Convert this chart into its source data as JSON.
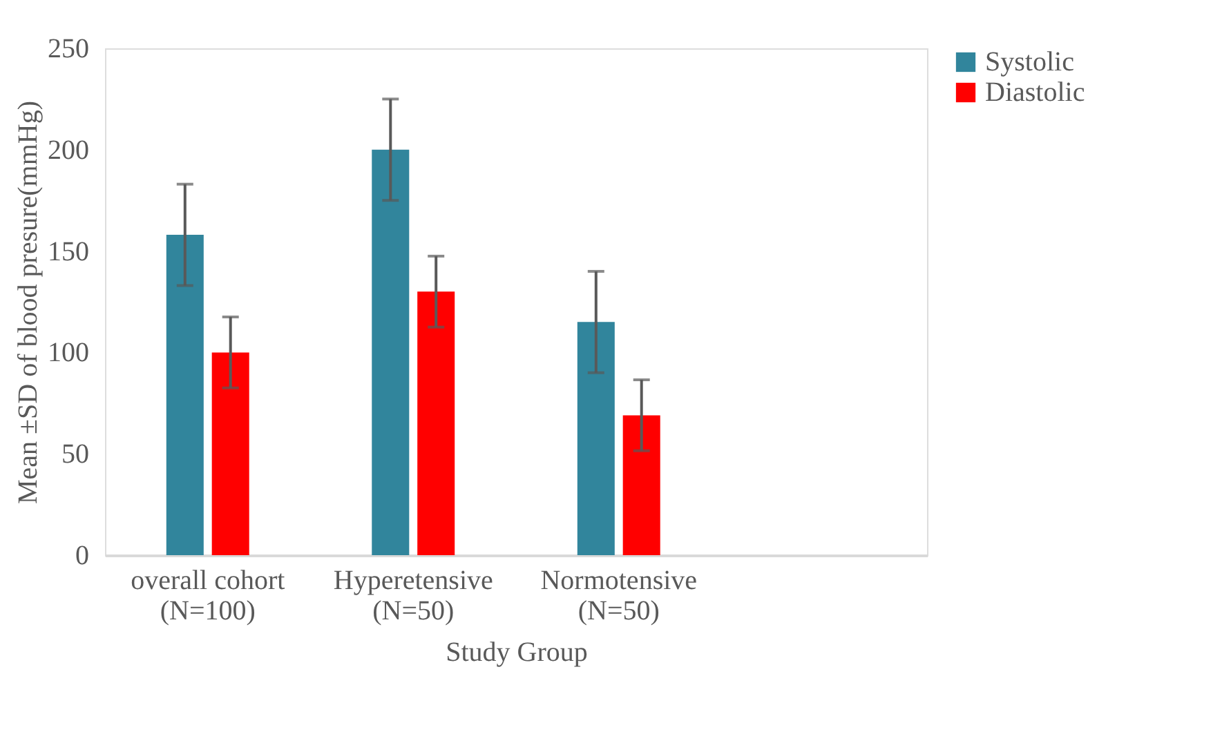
{
  "chart_data": {
    "type": "bar",
    "xlabel": "Study Group",
    "ylabel": "Mean ±SD of blood presure(mmHg)",
    "categories": [
      "overall cohort\n(N=100)",
      "Hyperetensive\n(N=50)",
      "Normotensive\n(N=50)",
      null
    ],
    "series": [
      {
        "name": "Systolic",
        "color": "#31859c",
        "values": [
          158,
          200,
          115,
          null
        ],
        "errors": [
          25,
          25,
          25,
          null
        ]
      },
      {
        "name": "Diastolic",
        "color": "#ff0000",
        "values": [
          100,
          130,
          69,
          null
        ],
        "errors": [
          17.5,
          17.5,
          17.5,
          null
        ]
      }
    ],
    "ylim": [
      0,
      250
    ],
    "yticks": [
      0,
      50,
      100,
      150,
      200,
      250
    ],
    "grid": false,
    "legend": "right"
  }
}
